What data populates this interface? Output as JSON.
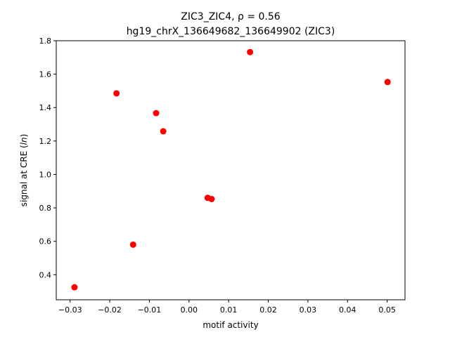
{
  "chart_data": {
    "type": "scatter",
    "title_line1": "ZIC3_ZIC4, ρ = 0.56",
    "title_line2": "hg19_chrX_136649682_136649902 (ZIC3)",
    "xlabel": "motif activity",
    "ylabel_prefix": "signal at CRE (",
    "ylabel_italic": "ln",
    "ylabel_suffix": ")",
    "xlim": [
      -0.0335,
      0.0545
    ],
    "ylim": [
      0.25,
      1.8
    ],
    "xticks": [
      -0.03,
      -0.02,
      -0.01,
      0.0,
      0.01,
      0.02,
      0.03,
      0.04,
      0.05
    ],
    "xtick_labels": [
      "−0.03",
      "−0.02",
      "−0.01",
      "0.00",
      "0.01",
      "0.02",
      "0.03",
      "0.04",
      "0.05"
    ],
    "yticks": [
      0.4,
      0.6,
      0.8,
      1.0,
      1.2,
      1.4,
      1.6,
      1.8
    ],
    "ytick_labels": [
      "0.4",
      "0.6",
      "0.8",
      "1.0",
      "1.2",
      "1.4",
      "1.6",
      "1.8"
    ],
    "grid": false,
    "marker_color": "#ff0000",
    "points": [
      {
        "x": -0.0289,
        "y": 0.325
      },
      {
        "x": -0.0183,
        "y": 1.485
      },
      {
        "x": -0.0141,
        "y": 0.58
      },
      {
        "x": -0.0083,
        "y": 1.367
      },
      {
        "x": -0.0065,
        "y": 1.258
      },
      {
        "x": 0.0047,
        "y": 0.86
      },
      {
        "x": 0.0057,
        "y": 0.853
      },
      {
        "x": 0.0154,
        "y": 1.732
      },
      {
        "x": 0.0501,
        "y": 1.553
      }
    ]
  }
}
